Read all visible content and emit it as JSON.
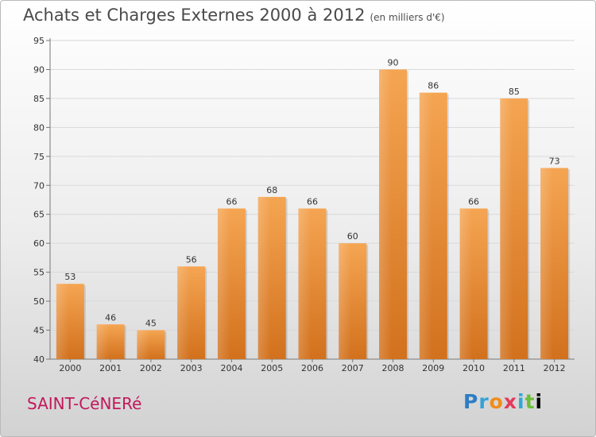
{
  "title": "Achats et Charges Externes 2000 à 2012",
  "unit_note": "(en milliers d'€)",
  "place_name": "SAINT-CéNERé",
  "logo_text": "Proxiti",
  "chart_data": {
    "type": "bar",
    "categories": [
      "2000",
      "2001",
      "2002",
      "2003",
      "2004",
      "2005",
      "2006",
      "2007",
      "2008",
      "2009",
      "2010",
      "2011",
      "2012"
    ],
    "values": [
      53,
      46,
      45,
      56,
      66,
      68,
      66,
      60,
      90,
      86,
      66,
      85,
      73
    ],
    "ylim": [
      40,
      95
    ],
    "yticks": [
      40,
      45,
      50,
      55,
      60,
      65,
      70,
      75,
      80,
      85,
      90,
      95
    ],
    "grid": true,
    "bar_color": "#f29a45"
  }
}
